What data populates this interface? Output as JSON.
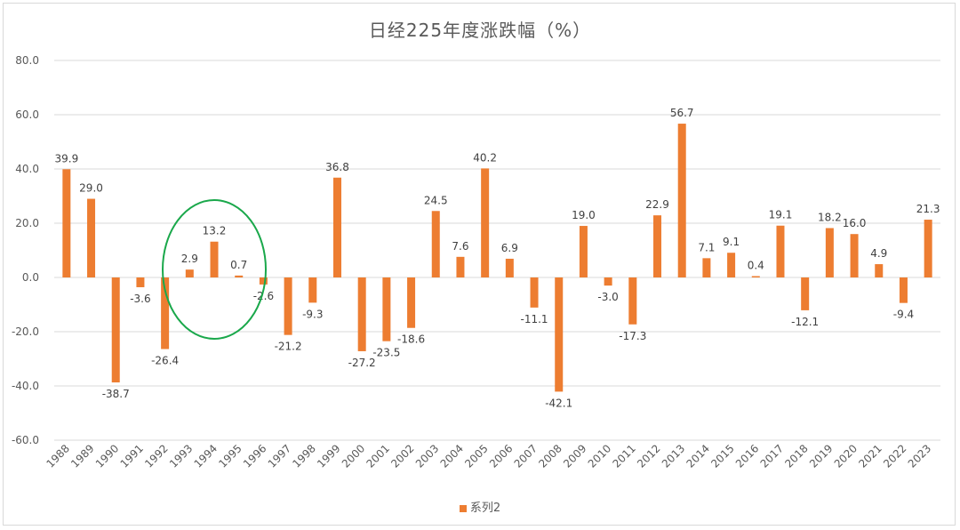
{
  "chart_data": {
    "type": "bar",
    "title": "日经225年度涨跌幅（%）",
    "categories": [
      "1988",
      "1989",
      "1990",
      "1991",
      "1992",
      "1993",
      "1994",
      "1995",
      "1996",
      "1997",
      "1998",
      "1999",
      "2000",
      "2001",
      "2002",
      "2003",
      "2004",
      "2005",
      "2006",
      "2007",
      "2008",
      "2009",
      "2010",
      "2011",
      "2012",
      "2013",
      "2014",
      "2015",
      "2016",
      "2017",
      "2018",
      "2019",
      "2020",
      "2021",
      "2022",
      "2023"
    ],
    "series": [
      {
        "name": "系列2",
        "values": [
          39.9,
          29.0,
          -38.7,
          -3.6,
          -26.4,
          2.9,
          13.2,
          0.7,
          -2.6,
          -21.2,
          -9.3,
          36.8,
          -27.2,
          -23.5,
          -18.6,
          24.5,
          7.6,
          40.2,
          6.9,
          -11.1,
          -42.1,
          19.0,
          -3.0,
          -17.3,
          22.9,
          56.7,
          7.1,
          9.1,
          0.4,
          19.1,
          -12.1,
          18.2,
          16.0,
          4.9,
          -9.4,
          21.3
        ],
        "labels": [
          "39.9",
          "29.0",
          "-38.7",
          "-3.6",
          "-26.4",
          "2.9",
          "13.2",
          "0.7",
          "-2.6",
          "-21.2",
          "-9.3",
          "36.8",
          "-27.2",
          "-23.5",
          "-18.6",
          "24.5",
          "7.6",
          "40.2",
          "6.9",
          "-11.1",
          "-42.1",
          "19.0",
          "-3.0",
          "-17.3",
          "22.9",
          "56.7",
          "7.1",
          "9.1",
          "0.4",
          "19.1",
          "-12.1",
          "18.2",
          "16.0",
          "4.9",
          "-9.4",
          "21.3"
        ]
      }
    ],
    "ylim": [
      -60,
      80
    ],
    "yticks": [
      "80.0",
      "60.0",
      "40.0",
      "20.0",
      "0.0",
      "-20.0",
      "-40.0",
      "-60.0"
    ],
    "ytick_values": [
      80,
      60,
      40,
      20,
      0,
      -20,
      -40,
      -60
    ],
    "grid": true,
    "legend_position": "bottom",
    "annotation": {
      "shape": "ellipse",
      "highlights": [
        "1993",
        "1994",
        "1995"
      ]
    },
    "colors": {
      "bar": "#ed7d31",
      "grid": "#d9d9d9",
      "annotation": "#1aa84b"
    }
  }
}
